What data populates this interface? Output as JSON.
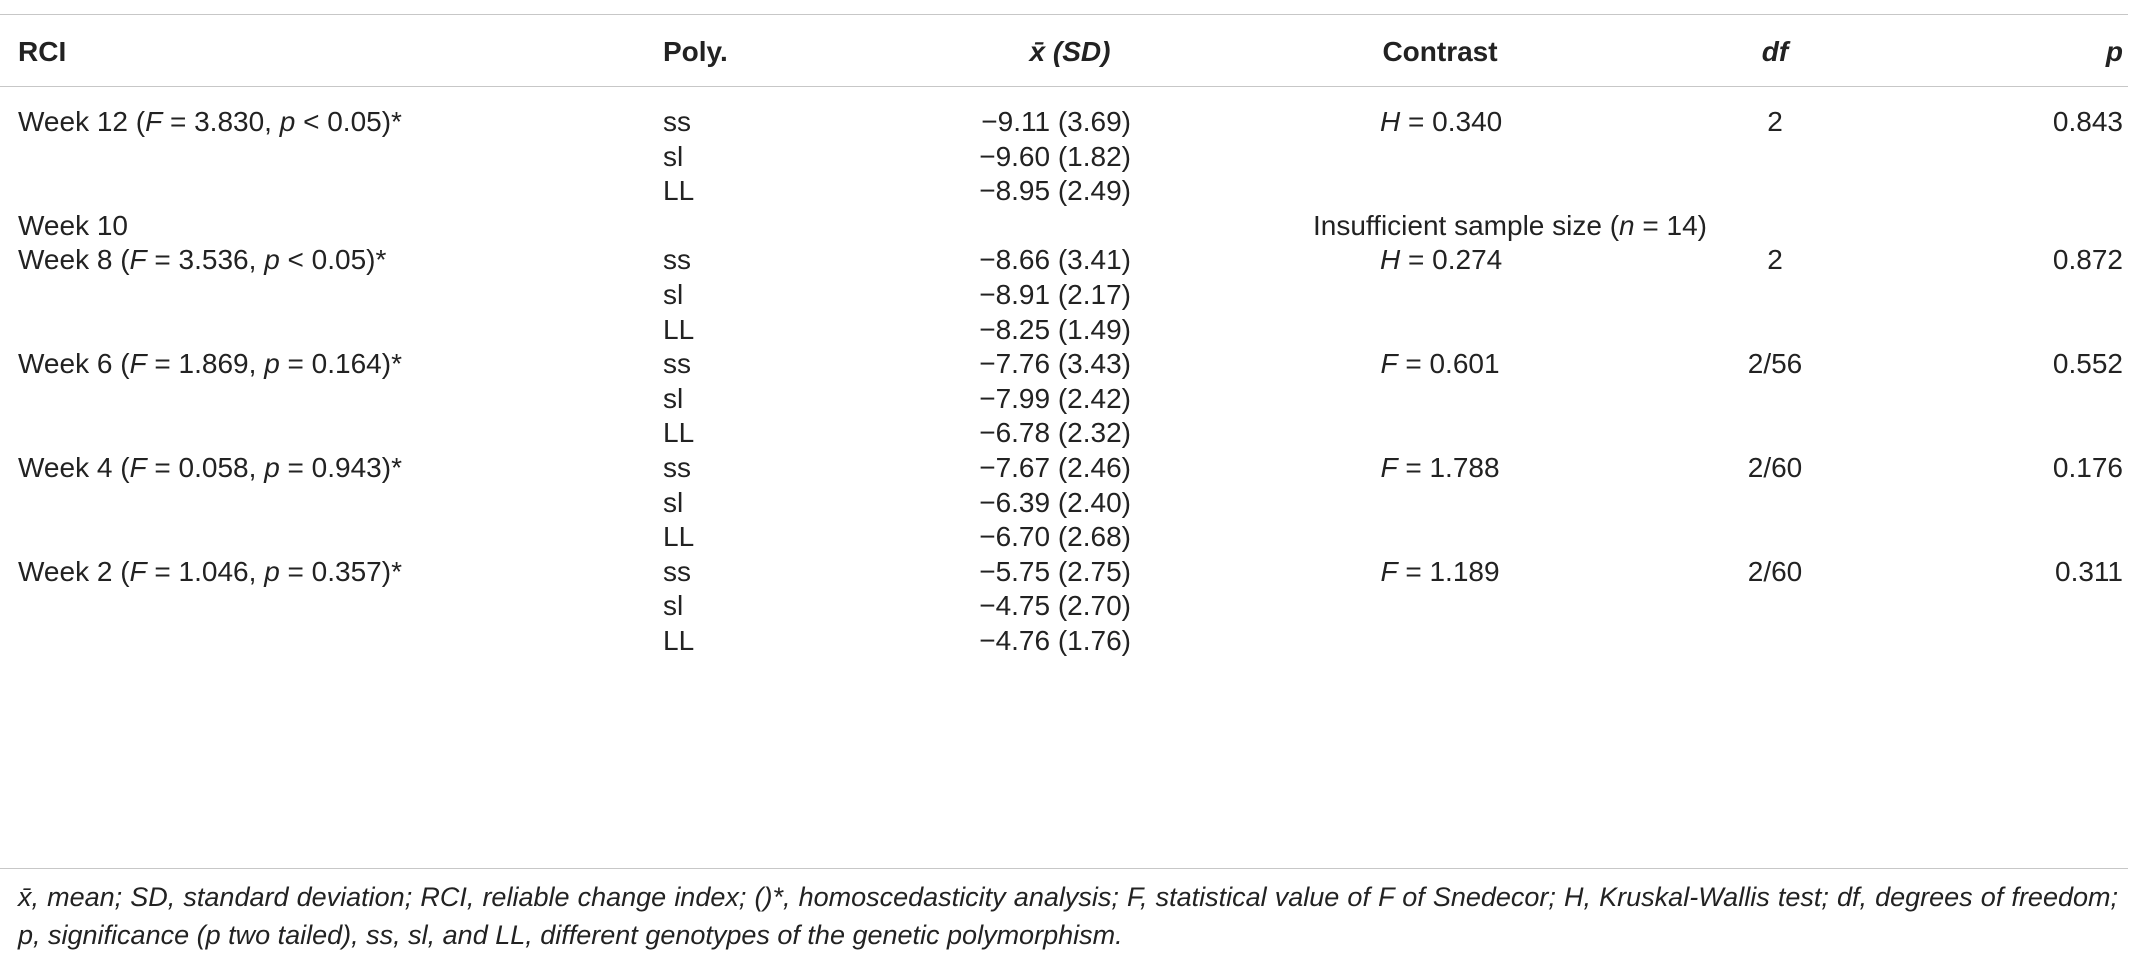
{
  "headers": {
    "rci": "RCI",
    "poly": "Poly.",
    "mean": "x̄ (SD)",
    "contrast": "Contrast",
    "df": "df",
    "p": "p"
  },
  "rows": [
    {
      "rci_prefix": "Week 12 (",
      "rci_stat": "F",
      "rci_mid": " = 3.830, ",
      "rci_p": "p",
      "rci_suffix": " < 0.05)*",
      "poly": "ss",
      "mean": "−9.11 (3.69)",
      "contrast_sym": "H",
      "contrast_val": " = 0.340",
      "df": "2",
      "p": "0.843"
    },
    {
      "poly": "sl",
      "mean": "−9.60 (1.82)"
    },
    {
      "poly": "LL",
      "mean": "−8.95 (2.49)"
    },
    {
      "rci_prefix": "Week 10",
      "span_prefix": "Insufficient sample size (",
      "span_n": "n",
      "span_suffix": " = 14)"
    },
    {
      "rci_prefix": "Week 8 (",
      "rci_stat": "F",
      "rci_mid": " = 3.536, ",
      "rci_p": "p",
      "rci_suffix": " < 0.05)*",
      "poly": "ss",
      "mean": "−8.66 (3.41)",
      "contrast_sym": "H",
      "contrast_val": " = 0.274",
      "df": "2",
      "p": "0.872"
    },
    {
      "poly": "sl",
      "mean": "−8.91 (2.17)"
    },
    {
      "poly": "LL",
      "mean": "−8.25 (1.49)"
    },
    {
      "rci_prefix": "Week 6 (",
      "rci_stat": "F",
      "rci_mid": " = 1.869, ",
      "rci_p": "p",
      "rci_suffix": " = 0.164)*",
      "poly": "ss",
      "mean": "−7.76 (3.43)",
      "contrast_sym": "F",
      "contrast_val": " = 0.601",
      "df": "2/56",
      "p": "0.552"
    },
    {
      "poly": "sl",
      "mean": "−7.99 (2.42)"
    },
    {
      "poly": "LL",
      "mean": "−6.78 (2.32)"
    },
    {
      "rci_prefix": "Week 4 (",
      "rci_stat": "F",
      "rci_mid": " = 0.058, ",
      "rci_p": "p",
      "rci_suffix": " = 0.943)*",
      "poly": "ss",
      "mean": "−7.67 (2.46)",
      "contrast_sym": "F",
      "contrast_val": " = 1.788",
      "df": "2/60",
      "p": "0.176"
    },
    {
      "poly": "sl",
      "mean": "−6.39 (2.40)"
    },
    {
      "poly": "LL",
      "mean": "−6.70 (2.68)"
    },
    {
      "rci_prefix": "Week 2 (",
      "rci_stat": "F",
      "rci_mid": " = 1.046, ",
      "rci_p": "p",
      "rci_suffix": " = 0.357)*",
      "poly": "ss",
      "mean": "−5.75 (2.75)",
      "contrast_sym": "F",
      "contrast_val": " = 1.189",
      "df": "2/60",
      "p": "0.311"
    },
    {
      "poly": "sl",
      "mean": "−4.75 (2.70)"
    },
    {
      "poly": "LL",
      "mean": "−4.76 (1.76)"
    }
  ],
  "footnote": "x̄, mean; SD, standard deviation; RCI, reliable change index; ()*, homoscedasticity analysis; F, statistical value of F of Snedecor; H, Kruskal-Wallis test; df, degrees of freedom; p, significance (p two tailed), ss, sl, and LL, different genotypes of the genetic polymorphism."
}
